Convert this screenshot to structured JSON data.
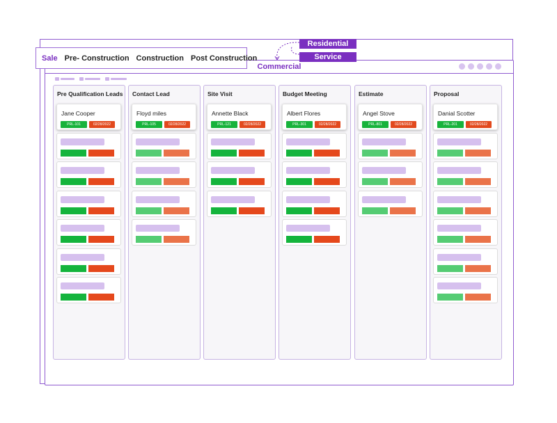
{
  "nav": {
    "tabs": [
      {
        "label": "Sale",
        "active": true
      },
      {
        "label": "Pre- Construction",
        "active": false
      },
      {
        "label": "Construction",
        "active": false
      },
      {
        "label": "Post Construction",
        "active": false
      }
    ]
  },
  "badges": {
    "residential": "Residential",
    "service": "Service"
  },
  "window": {
    "title": "Commercial"
  },
  "colors": {
    "accent": "#7a2fc0",
    "chip_green": "#17b33b",
    "chip_orange": "#e2491d",
    "placeholder_purple": "#d6c0ee"
  },
  "columns": [
    {
      "title": "Pre Qualification Leads",
      "lead": {
        "name": "Jane Cooper",
        "id": "PRL-101",
        "date": "02/28/2022"
      },
      "placeholder_cards": 6,
      "light": false
    },
    {
      "title": "Contact Lead",
      "lead": {
        "name": "Floyd miles",
        "id": "PRL-105",
        "date": "02/28/2022"
      },
      "placeholder_cards": 4,
      "light": true
    },
    {
      "title": "Site Visit",
      "lead": {
        "name": "Annette Black",
        "id": "PRL-121",
        "date": "02/28/2022"
      },
      "placeholder_cards": 3,
      "light": false
    },
    {
      "title": "Budget Meeting",
      "lead": {
        "name": "Albert Flores",
        "id": "PRL-301",
        "date": "02/28/2022"
      },
      "placeholder_cards": 4,
      "light": false
    },
    {
      "title": "Estimate",
      "lead": {
        "name": "Angel Stove",
        "id": "PRL-801",
        "date": "02/28/2022"
      },
      "placeholder_cards": 3,
      "light": true
    },
    {
      "title": "Proposal",
      "lead": {
        "name": "Danial Scotter",
        "id": "PRL-201",
        "date": "02/28/2022"
      },
      "placeholder_cards": 6,
      "light": true
    }
  ]
}
